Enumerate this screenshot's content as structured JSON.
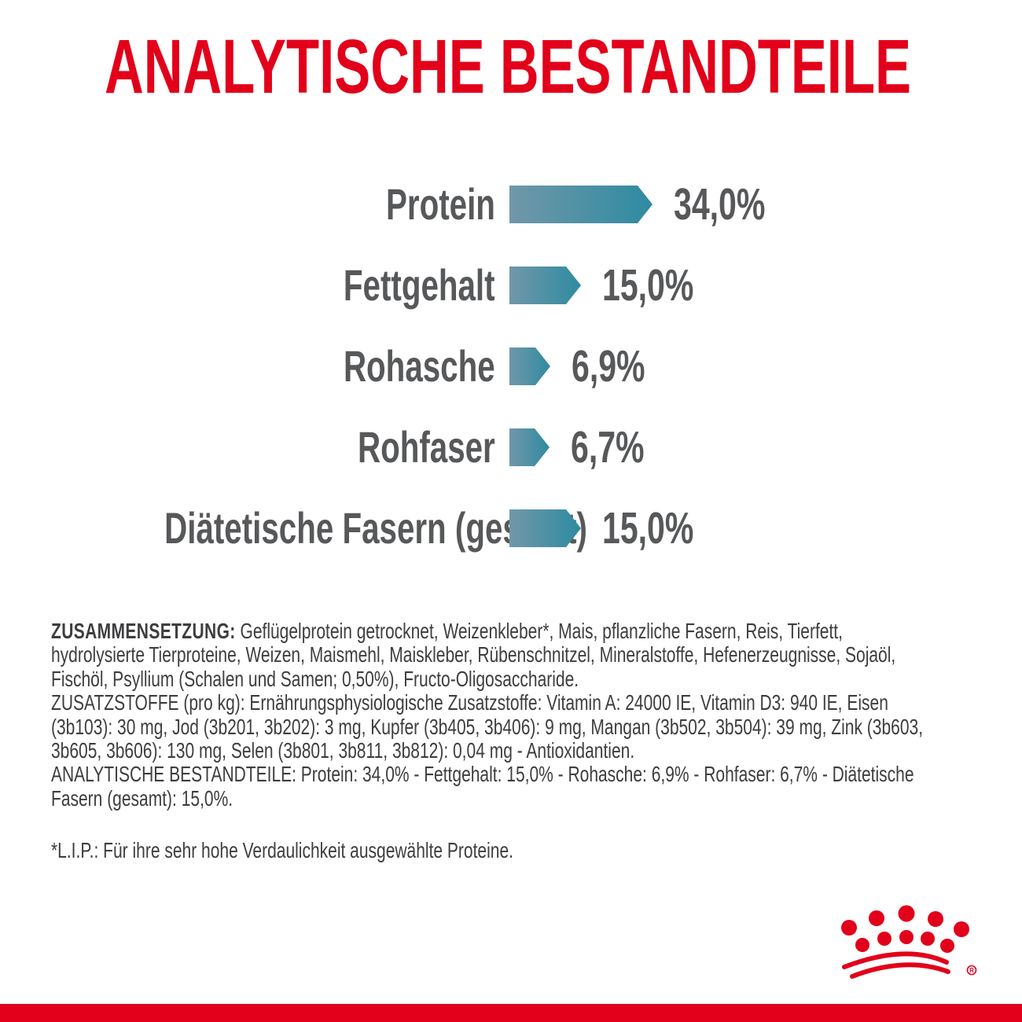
{
  "title": "ANALYTISCHE BESTANDTEILE",
  "brand_red": "#e2001a",
  "text_gray": "#3e3e40",
  "chart_gray": "#57585a",
  "chart_data": {
    "type": "bar",
    "orientation": "horizontal",
    "title": "ANALYTISCHE BESTANDTEILE",
    "unit": "%",
    "categories": [
      "Protein",
      "Fettgehalt",
      "Rohasche",
      "Rohfaser",
      "Diätetische Fasern (gesamt)"
    ],
    "values": [
      34.0,
      15.0,
      6.9,
      6.7,
      15.0
    ],
    "value_labels": [
      "34,0%",
      "15,0%",
      "6,9%",
      "6,7%",
      "15,0%"
    ],
    "bar_color_start": "#7197a9",
    "bar_color_end": "#2e8ba1",
    "grid": false,
    "legend": false
  },
  "info": {
    "composition_label": "ZUSAMMENSETZUNG:",
    "composition_text": "Geflügelprotein getrocknet, Weizenkleber*, Mais, pflanzliche Fasern, Reis, Tierfett, hydrolysierte Tierproteine, Weizen, Maismehl, Maiskleber, Rübenschnitzel, Mineralstoffe, Hefenerzeugnisse, Sojaöl, Fischöl, Psyllium (Schalen und Samen; 0,50%), Fructo-Oligosaccharide.",
    "additives_text": "ZUSATZSTOFFE (pro kg): Ernährungsphysiologische Zusatzstoffe: Vitamin A: 24000 IE, Vitamin D3: 940 IE, Eisen (3b103): 30 mg, Jod (3b201, 3b202): 3 mg, Kupfer (3b405, 3b406): 9 mg, Mangan (3b502, 3b504): 39 mg, Zink (3b603, 3b605, 3b606): 130 mg, Selen (3b801, 3b811, 3b812): 0,04 mg - Antioxidantien.",
    "analytical_text": "ANALYTISCHE BESTANDTEILE: Protein: 34,0% - Fettgehalt: 15,0% - Rohasche: 6,9% - Rohfaser: 6,7% - Diätetische Fasern (gesamt): 15,0%.",
    "footnote": "*L.I.P.: Für ihre sehr hohe Verdaulichkeit ausgewählte Proteine."
  },
  "logo": {
    "name": "Royal Canin crown",
    "registered_mark": "R"
  }
}
